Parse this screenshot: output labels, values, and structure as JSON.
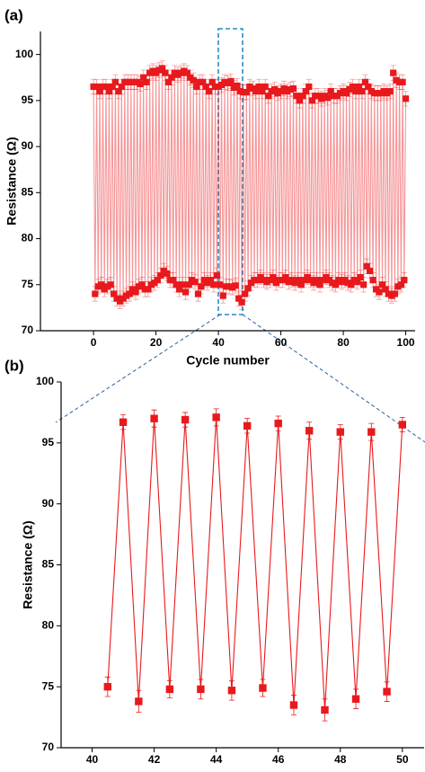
{
  "chart_data": [
    {
      "type": "line",
      "label": "(a)",
      "xlabel": "Cycle number",
      "ylabel": "Resistance (Ω)",
      "x": [
        0,
        0.5,
        1,
        1.5,
        2,
        2.5,
        3,
        3.5,
        4,
        4.5,
        5,
        5.5,
        6,
        6.5,
        7,
        7.5,
        8,
        8.5,
        9,
        9.5,
        10,
        10.5,
        11,
        11.5,
        12,
        12.5,
        13,
        13.5,
        14,
        14.5,
        15,
        15.5,
        16,
        16.5,
        17,
        17.5,
        18,
        18.5,
        19,
        19.5,
        20,
        20.5,
        21,
        21.5,
        22,
        22.5,
        23,
        23.5,
        24,
        24.5,
        25,
        25.5,
        26,
        26.5,
        27,
        27.5,
        28,
        28.5,
        29,
        29.5,
        30,
        30.5,
        31,
        31.5,
        32,
        32.5,
        33,
        33.5,
        34,
        34.5,
        35,
        35.5,
        36,
        36.5,
        37,
        37.5,
        38,
        38.5,
        39,
        39.5,
        40,
        40.5,
        41,
        41.5,
        42,
        42.5,
        43,
        43.5,
        44,
        44.5,
        45,
        45.5,
        46,
        46.5,
        47,
        47.5,
        48,
        48.5,
        49,
        49.5,
        50,
        50.5,
        51,
        51.5,
        52,
        52.5,
        53,
        53.5,
        54,
        54.5,
        55,
        55.5,
        56,
        56.5,
        57,
        57.5,
        58,
        58.5,
        59,
        59.5,
        60,
        60.5,
        61,
        61.5,
        62,
        62.5,
        63,
        63.5,
        64,
        64.5,
        65,
        65.5,
        66,
        66.5,
        67,
        67.5,
        68,
        68.5,
        69,
        69.5,
        70,
        70.5,
        71,
        71.5,
        72,
        72.5,
        73,
        73.5,
        74,
        74.5,
        75,
        75.5,
        76,
        76.5,
        77,
        77.5,
        78,
        78.5,
        79,
        79.5,
        80,
        80.5,
        81,
        81.5,
        82,
        82.5,
        83,
        83.5,
        84,
        84.5,
        85,
        85.5,
        86,
        86.5,
        87,
        87.5,
        88,
        88.5,
        89,
        89.5,
        90,
        90.5,
        91,
        91.5,
        92,
        92.5,
        93,
        93.5,
        94,
        94.5,
        95,
        95.5,
        96,
        96.5,
        97,
        97.5,
        98,
        98.5,
        99,
        99.5,
        100
      ],
      "series": [
        {
          "color": "#e8191c",
          "error": 0.8,
          "values": [
            96.5,
            74,
            96.5,
            74.8,
            96,
            75,
            96.5,
            74.5,
            96.5,
            74.8,
            96,
            75,
            96.5,
            74,
            97,
            73.5,
            96,
            73.2,
            96.5,
            73.5,
            97,
            73.8,
            97,
            74,
            97,
            74.5,
            97,
            74.2,
            97,
            74.8,
            96.8,
            75,
            97.5,
            74.5,
            97,
            74.5,
            98,
            75,
            98.2,
            75.2,
            98,
            75.5,
            98.3,
            76,
            98.5,
            76.5,
            98,
            76.2,
            97,
            75.5,
            97.5,
            75.5,
            98,
            75,
            97.8,
            74.5,
            98,
            75,
            98.2,
            74.2,
            98,
            75,
            97.5,
            75.5,
            97.2,
            75.3,
            96.5,
            74,
            97,
            74.8,
            97,
            75.5,
            96.5,
            75.2,
            96,
            75.5,
            97,
            75,
            96.5,
            76,
            96.5,
            75,
            96.7,
            73.8,
            97,
            74.8,
            96.9,
            74.8,
            97.1,
            74.7,
            96.4,
            74.9,
            96.6,
            73.5,
            96,
            73.1,
            95.9,
            74,
            95.9,
            74.6,
            96.5,
            75.2,
            96.3,
            75.5,
            96,
            75.5,
            96.5,
            75.8,
            96,
            75.5,
            96.5,
            75.3,
            95.5,
            75.5,
            96,
            75.8,
            96.2,
            75.2,
            95.8,
            75.5,
            96,
            75.5,
            96.3,
            75.8,
            96,
            75.3,
            96.2,
            75.5,
            96.3,
            75.2,
            95.5,
            75.5,
            95,
            75,
            95.5,
            75.5,
            96,
            75.8,
            96.5,
            75.5,
            95,
            75.2,
            95.5,
            75.5,
            95.5,
            75,
            95.2,
            75.5,
            95.5,
            75.8,
            95.3,
            75.5,
            96,
            75.2,
            95.5,
            75,
            95.5,
            75.5,
            95.8,
            75.3,
            96,
            75.5,
            95.8,
            75.2,
            96.2,
            75,
            96.5,
            75.5,
            96,
            75.3,
            96.5,
            75.8,
            96,
            75,
            97,
            77,
            96.5,
            76.5,
            96,
            75.5,
            95.8,
            74.5,
            95.8,
            74.2,
            95.8,
            75,
            96,
            74.5,
            95.8,
            74,
            96,
            73.8,
            98,
            74,
            97.2,
            74.8,
            97,
            75,
            97,
            75.5,
            95.2
          ]
        }
      ],
      "xlim": [
        -17,
        103
      ],
      "ylim": [
        70,
        102.5
      ],
      "xticks": [
        0,
        20,
        40,
        60,
        80,
        100
      ],
      "yticks": [
        70,
        75,
        80,
        85,
        90,
        95,
        100
      ]
    },
    {
      "type": "line",
      "label": "(b)",
      "xlabel": "Cycle number",
      "ylabel": "Resistance (Ω)",
      "x": [
        40.5,
        41,
        41.5,
        42,
        42.5,
        43,
        43.5,
        44,
        44.5,
        45,
        45.5,
        46,
        46.5,
        47,
        47.5,
        48,
        48.5,
        49,
        49.5,
        50
      ],
      "series": [
        {
          "color": "#e8191c",
          "values": [
            75,
            96.7,
            73.8,
            97,
            74.8,
            96.9,
            74.8,
            97.1,
            74.7,
            96.4,
            74.9,
            96.6,
            73.5,
            96,
            73.1,
            95.9,
            74,
            95.9,
            74.6,
            96.5
          ],
          "error": [
            0.8,
            0.6,
            0.9,
            0.7,
            0.7,
            0.6,
            0.8,
            0.7,
            0.8,
            0.6,
            0.7,
            0.6,
            0.8,
            0.7,
            0.9,
            0.6,
            0.8,
            0.7,
            0.8,
            0.6
          ]
        }
      ],
      "xlim": [
        39,
        50.7
      ],
      "ylim": [
        70,
        100
      ],
      "xticks": [
        40,
        42,
        44,
        46,
        48,
        50
      ],
      "yticks": [
        70,
        75,
        80,
        85,
        90,
        95,
        100
      ]
    }
  ]
}
